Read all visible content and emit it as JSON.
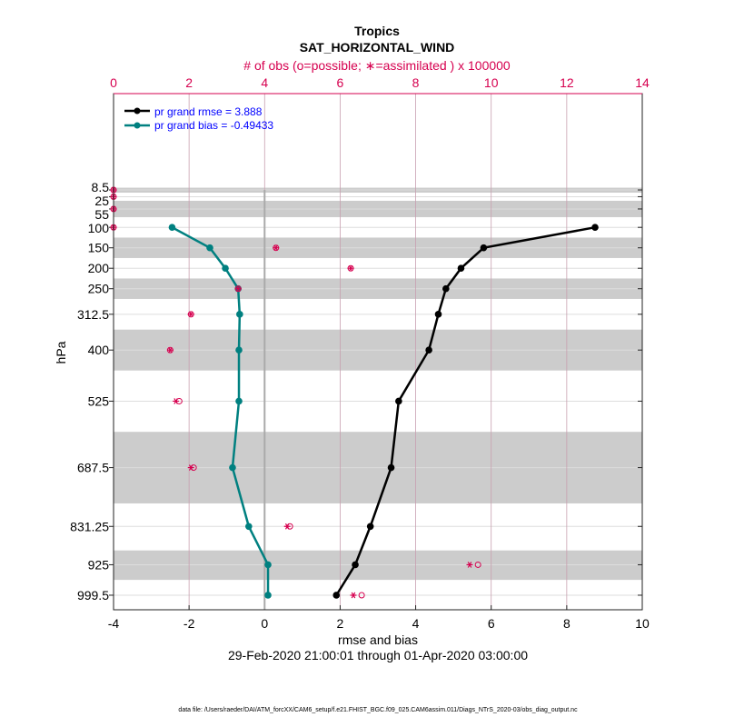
{
  "chart_data": {
    "type": "line",
    "title": "Tropics",
    "subtitle": "SAT_HORIZONTAL_WIND",
    "top_axis_label": "# of obs (o=possible; ∗=assimilated ) x 100000",
    "xlabel": "rmse and bias",
    "date_range": "29-Feb-2020 21:00:01 through 01-Apr-2020 03:00:00",
    "ylabel": "hPa",
    "footer": "data file: /Users/raeder/DAI/ATM_forcXX/CAM6_setup/f.e21.FHIST_BGC.f09_025.CAM6assim.011/Diags_NTrS_2020-03/obs_diag_output.nc",
    "xlim": [
      -4,
      10
    ],
    "xticks": [
      "-4",
      "-2",
      "0",
      "2",
      "4",
      "6",
      "8",
      "10"
    ],
    "top_xlim": [
      0,
      14
    ],
    "top_xticks": [
      "0",
      "2",
      "4",
      "6",
      "8",
      "10",
      "12",
      "14"
    ],
    "levels": [
      8.5,
      25,
      55,
      100,
      150,
      200,
      250,
      312.5,
      400,
      525,
      687.5,
      831.25,
      925,
      999.5
    ],
    "level_labels": [
      "8.5",
      "25",
      "55",
      "100",
      "150",
      "200",
      "250",
      "312.5",
      "400",
      "525",
      "687.5",
      "831.25",
      "925",
      "999.5"
    ],
    "shaded_layers_hPa": [
      [
        3,
        15
      ],
      [
        35,
        75
      ],
      [
        125,
        175
      ],
      [
        225,
        275
      ],
      [
        350,
        450
      ],
      [
        600,
        775
      ],
      [
        890,
        962
      ]
    ],
    "series": [
      {
        "name": "pr grand rmse = 3.888",
        "color": "#000000",
        "levels": [
          100,
          150,
          200,
          250,
          312.5,
          400,
          525,
          687.5,
          831.25,
          925,
          999.5
        ],
        "values": [
          8.75,
          5.8,
          5.2,
          4.8,
          4.6,
          4.35,
          3.55,
          3.35,
          2.8,
          2.4,
          1.9
        ]
      },
      {
        "name": "pr grand bias = -0.49433",
        "color": "#008080",
        "levels": [
          100,
          150,
          200,
          250,
          312.5,
          400,
          525,
          687.5,
          831.25,
          925,
          999.5
        ],
        "values": [
          -2.45,
          -1.45,
          -1.04,
          -0.7,
          -0.66,
          -0.68,
          -0.68,
          -0.85,
          -0.42,
          0.09,
          0.09
        ]
      }
    ],
    "obs_possible": [
      0,
      0,
      0,
      0,
      4.3,
      6.28,
      3.3,
      2.05,
      1.5,
      1.74,
      2.12,
      4.67,
      9.65,
      6.57
    ],
    "obs_assimilated": [
      0,
      0,
      0,
      0,
      4.3,
      6.28,
      3.3,
      2.05,
      1.5,
      1.65,
      2.05,
      4.6,
      9.43,
      6.35
    ],
    "colors": {
      "obs": "#d6004f",
      "legend_text": "#0000ff",
      "band": "#cccccc"
    }
  }
}
